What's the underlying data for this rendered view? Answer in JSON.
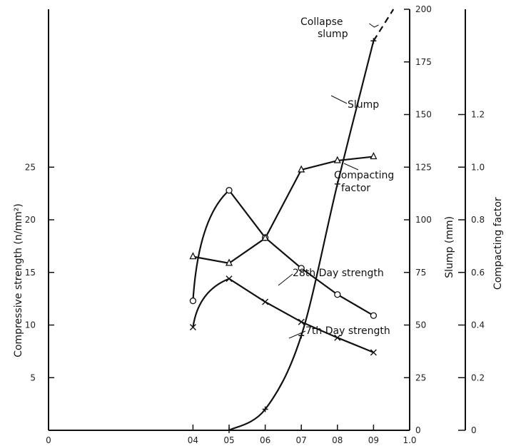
{
  "chart_data": {
    "type": "line",
    "x_axis": {
      "range": [
        0,
        1.0
      ],
      "ticks": [
        0,
        0.4,
        0.5,
        0.6,
        0.7,
        0.8,
        0.9,
        1.0
      ],
      "tick_labels": [
        "0",
        "04",
        "05",
        "06",
        "07",
        "08",
        "09",
        "1.0"
      ],
      "label": ""
    },
    "y_left": {
      "label": "Compressive strength (n/mm²)",
      "range": [
        0,
        40
      ],
      "ticks": [
        5,
        10,
        15,
        20,
        25
      ],
      "tick_labels": [
        "5",
        "10",
        "15",
        "20",
        "25"
      ]
    },
    "y_slump": {
      "label": "Slump (mm)",
      "range": [
        0,
        200
      ],
      "ticks": [
        0,
        25,
        50,
        75,
        100,
        125,
        150,
        175,
        200
      ],
      "tick_labels": [
        "0",
        "25",
        "50",
        "75",
        "100",
        "125",
        "150",
        "175",
        "200"
      ]
    },
    "y_cf": {
      "label": "Compacting factor",
      "range": [
        0,
        1.6
      ],
      "ticks": [
        0,
        0.2,
        0.4,
        0.6,
        0.8,
        1.0,
        1.2
      ],
      "tick_labels": [
        "0",
        "0.2",
        "0.4",
        "0.6",
        "0.8",
        "1.0",
        "1.2"
      ]
    },
    "series": [
      {
        "name": "28th Day strength",
        "axis": "left",
        "marker": "circle",
        "x": [
          0.4,
          0.5,
          0.6,
          0.7,
          0.8,
          0.9
        ],
        "y": [
          12.3,
          22.8,
          18.3,
          15.4,
          12.9,
          10.9
        ]
      },
      {
        "name": "7th Day strength",
        "axis": "left",
        "marker": "x",
        "x": [
          0.4,
          0.5,
          0.6,
          0.7,
          0.8,
          0.9
        ],
        "y": [
          9.8,
          14.4,
          12.2,
          10.3,
          8.8,
          7.4
        ]
      },
      {
        "name": "Compacting factor",
        "axis": "cf",
        "marker": "triangle",
        "x": [
          0.4,
          0.5,
          0.6,
          0.7,
          0.8,
          0.9
        ],
        "y": [
          0.66,
          0.635,
          0.73,
          0.99,
          1.025,
          1.04
        ]
      },
      {
        "name": "Slump",
        "axis": "slump",
        "marker": "plus",
        "x": [
          0.5,
          0.6,
          0.7,
          0.8,
          0.9
        ],
        "y": [
          0,
          10,
          45,
          117,
          185
        ]
      }
    ],
    "annotations": [
      {
        "text": "Collapse",
        "lines": [
          "Collapse",
          "slump"
        ]
      },
      {
        "text": "Slump"
      },
      {
        "text": "Compacting",
        "lines": [
          "Compacting",
          "factor"
        ]
      },
      {
        "text": "28th Day strength"
      },
      {
        "text": "7th Day strength"
      }
    ]
  }
}
